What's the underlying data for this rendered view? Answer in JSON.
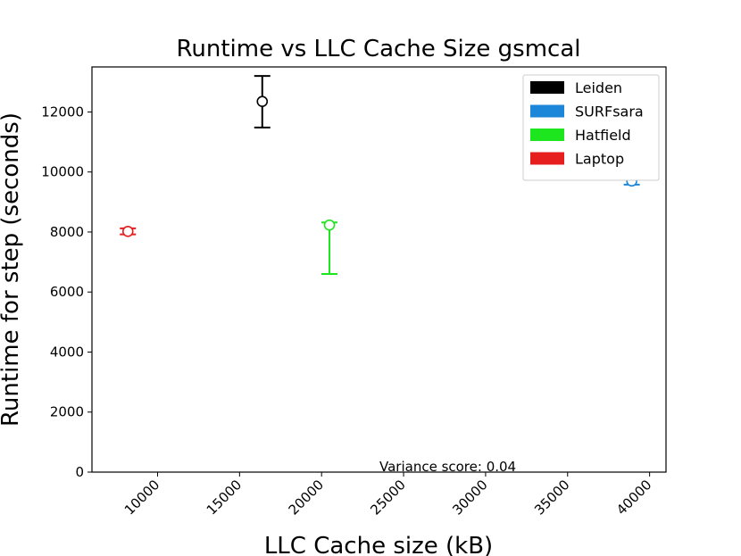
{
  "chart_data": {
    "type": "scatter",
    "title": "Runtime vs LLC Cache Size gsmcal",
    "xlabel": "LLC Cache size (kB)",
    "ylabel": "Runtime for step (seconds)",
    "xlim": [
      6000,
      41000
    ],
    "ylim": [
      0,
      13500
    ],
    "xticks": [
      10000,
      15000,
      20000,
      25000,
      30000,
      35000,
      40000
    ],
    "yticks": [
      0,
      2000,
      4000,
      6000,
      8000,
      10000,
      12000
    ],
    "grid": false,
    "legend_position": "top-right",
    "annotation": "Variance score: 0.04",
    "series": [
      {
        "name": "Leiden",
        "color": "#000000",
        "x": 16384,
        "y": 12350,
        "err_low": 11480,
        "err_high": 13200
      },
      {
        "name": "SURFsara",
        "color": "#1c86d8",
        "x": 38912,
        "y": 9700,
        "err_low": 9580,
        "err_high": 9820
      },
      {
        "name": "Hatfield",
        "color": "#1ee61e",
        "x": 20480,
        "y": 8230,
        "err_low": 6600,
        "err_high": 8320
      },
      {
        "name": "Laptop",
        "color": "#e61e1e",
        "x": 8192,
        "y": 8020,
        "err_low": 7920,
        "err_high": 8120
      }
    ]
  }
}
